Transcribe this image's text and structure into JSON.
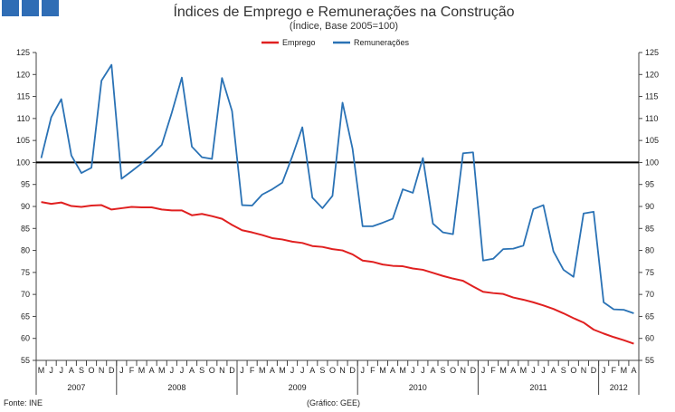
{
  "chart_data": {
    "type": "line",
    "title": "Índices de Emprego e Remunerações na Construção",
    "subtitle": "(Índice, Base 2005=100)",
    "ylim": [
      55,
      125
    ],
    "yticks": [
      55,
      60,
      65,
      70,
      75,
      80,
      85,
      90,
      95,
      100,
      105,
      110,
      115,
      120,
      125
    ],
    "reference_line": 100,
    "months": [
      "M",
      "J",
      "J",
      "A",
      "S",
      "O",
      "N",
      "D",
      "J",
      "F",
      "M",
      "A",
      "M",
      "J",
      "J",
      "A",
      "S",
      "O",
      "N",
      "D",
      "J",
      "F",
      "M",
      "A",
      "M",
      "J",
      "J",
      "A",
      "S",
      "O",
      "N",
      "D",
      "J",
      "F",
      "M",
      "A",
      "M",
      "J",
      "J",
      "A",
      "S",
      "O",
      "N",
      "D",
      "J",
      "F",
      "M",
      "A",
      "M",
      "J",
      "J",
      "A",
      "S",
      "O",
      "N",
      "D",
      "J",
      "F",
      "M",
      "A"
    ],
    "years": [
      {
        "label": "2007",
        "start": 0,
        "count": 8
      },
      {
        "label": "2008",
        "start": 8,
        "count": 12
      },
      {
        "label": "2009",
        "start": 20,
        "count": 12
      },
      {
        "label": "2010",
        "start": 32,
        "count": 12
      },
      {
        "label": "2011",
        "start": 44,
        "count": 12
      },
      {
        "label": "2012",
        "start": 56,
        "count": 4
      }
    ],
    "series": [
      {
        "name": "Emprego",
        "color": "#e02020",
        "values": [
          91.0,
          90.6,
          90.9,
          90.1,
          89.9,
          90.2,
          90.3,
          89.3,
          89.6,
          89.9,
          89.8,
          89.8,
          89.3,
          89.1,
          89.1,
          88.0,
          88.3,
          87.8,
          87.2,
          85.8,
          84.6,
          84.1,
          83.5,
          82.8,
          82.5,
          82.0,
          81.7,
          81.0,
          80.8,
          80.3,
          80.0,
          79.1,
          77.7,
          77.4,
          76.8,
          76.5,
          76.4,
          75.9,
          75.6,
          74.9,
          74.2,
          73.6,
          73.1,
          71.8,
          70.6,
          70.3,
          70.1,
          69.3,
          68.8,
          68.2,
          67.5,
          66.7,
          65.7,
          64.6,
          63.6,
          62.0,
          61.1,
          60.3,
          59.6,
          58.8
        ]
      },
      {
        "name": "Remunerações",
        "color": "#2a72b5",
        "values": [
          101.0,
          110.3,
          114.4,
          101.6,
          97.6,
          98.8,
          118.6,
          122.2,
          96.3,
          98.0,
          99.8,
          101.7,
          104.0,
          111.3,
          119.3,
          103.6,
          101.2,
          100.8,
          119.2,
          111.7,
          90.3,
          90.2,
          92.7,
          93.9,
          95.4,
          101.4,
          108.0,
          92.0,
          89.6,
          92.4,
          113.6,
          103.1,
          85.5,
          85.5,
          86.3,
          87.2,
          93.9,
          93.1,
          101.0,
          86.1,
          84.1,
          83.7,
          102.1,
          102.3,
          77.7,
          78.1,
          80.3,
          80.4,
          81.1,
          89.4,
          90.3,
          79.8,
          75.6,
          74.0,
          88.4,
          88.8,
          68.2,
          66.6,
          66.5,
          65.7
        ]
      }
    ]
  },
  "footer": {
    "source": "Fonte: INE",
    "credit": "(Gráfico: GEE)"
  },
  "header": {
    "logo_color": "#2f6db5"
  }
}
